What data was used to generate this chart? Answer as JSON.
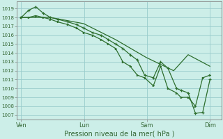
{
  "background_color": "#cceee8",
  "grid_color": "#99cccc",
  "line_color": "#2d6e2d",
  "marker_color": "#2d6e2d",
  "xlabel": "Pression niveau de la mer( hPa )",
  "yticks": [
    1007,
    1008,
    1009,
    1010,
    1011,
    1012,
    1013,
    1014,
    1015,
    1016,
    1017,
    1018,
    1019
  ],
  "ylim": [
    1006.5,
    1019.8
  ],
  "xtick_labels": [
    "Ven",
    "Lun",
    "Sam",
    "Dim"
  ],
  "xtick_positions": [
    0,
    4.33,
    8.66,
    13
  ],
  "xlim": [
    -0.3,
    13.8
  ],
  "series1_x": [
    0,
    0.5,
    1.0,
    1.5,
    2.0,
    2.5,
    3.2,
    3.8,
    4.3,
    4.9,
    5.5,
    6.0,
    6.5,
    7.0,
    7.5,
    8.0,
    8.5,
    9.1,
    9.6,
    10.1,
    10.7,
    11.0,
    11.5,
    12.0,
    12.5,
    13.0
  ],
  "series1_y": [
    1018,
    1018.8,
    1019.2,
    1018.5,
    1018,
    1017.8,
    1017.5,
    1017.2,
    1016.8,
    1016.3,
    1016.0,
    1015.5,
    1015.0,
    1014.5,
    1013.8,
    1013.2,
    1011.5,
    1011.2,
    1013.0,
    1012.3,
    1010.0,
    1009.8,
    1009.5,
    1007.2,
    1007.3,
    1011.0
  ],
  "series2_x": [
    0,
    0.5,
    1.0,
    1.5,
    2.0,
    2.5,
    3.2,
    3.8,
    4.3,
    4.9,
    5.5,
    6.0,
    6.5,
    7.0,
    7.5,
    8.0,
    8.5,
    9.1,
    9.6,
    10.1,
    10.7,
    11.0,
    11.5,
    12.0,
    12.5,
    13.0
  ],
  "series2_y": [
    1018.0,
    1018.0,
    1018.2,
    1018.0,
    1017.8,
    1017.5,
    1017.2,
    1016.8,
    1016.3,
    1016.0,
    1015.5,
    1015.0,
    1014.5,
    1013.0,
    1012.5,
    1011.5,
    1011.2,
    1010.3,
    1012.5,
    1010.0,
    1009.5,
    1009.0,
    1009.0,
    1008.0,
    1011.2,
    1011.5
  ],
  "series3_x": [
    0,
    2.0,
    4.3,
    6.5,
    8.6,
    10.5,
    11.5,
    13.0
  ],
  "series3_y": [
    1018.0,
    1018.0,
    1017.3,
    1015.5,
    1013.5,
    1012.0,
    1013.8,
    1012.5
  ],
  "spine_color": "#888888"
}
